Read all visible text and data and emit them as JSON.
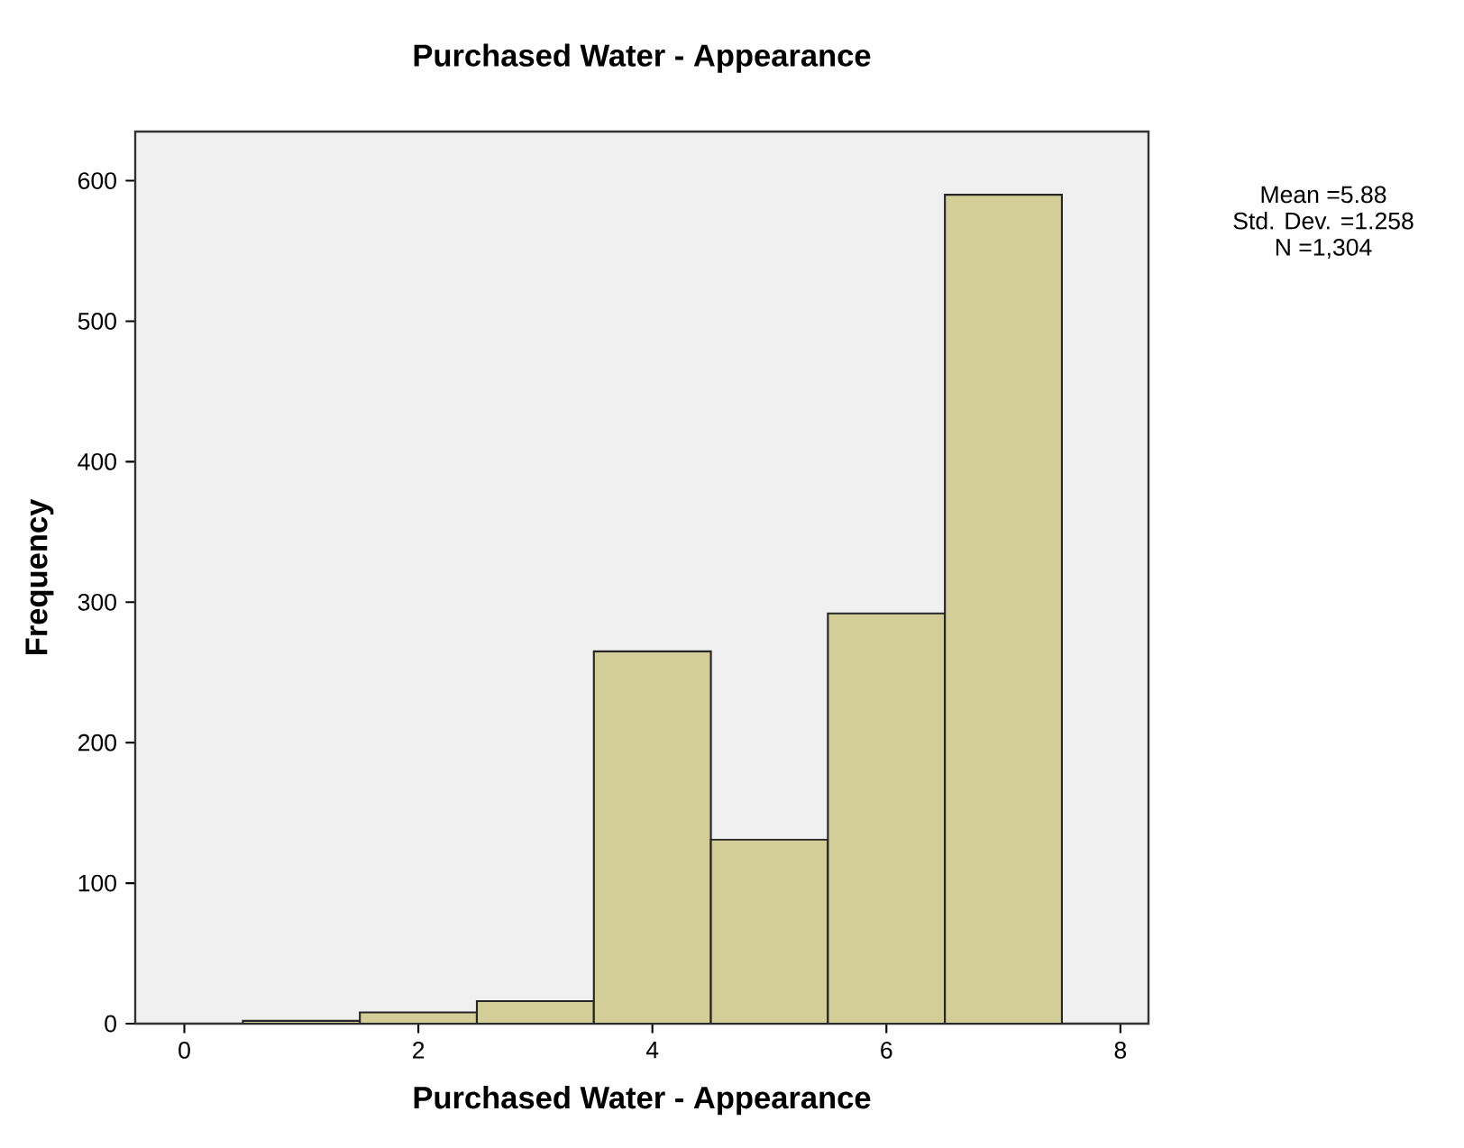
{
  "chart_data": {
    "type": "histogram",
    "title": "Purchased Water - Appearance",
    "xlabel": "Purchased Water - Appearance",
    "ylabel": "Frequency",
    "bins": [
      0.5,
      1.5,
      2.5,
      3.5,
      4.5,
      5.5,
      6.5,
      7.5
    ],
    "values": [
      2,
      8,
      16,
      265,
      131,
      292,
      590
    ],
    "color": "#d3ce97",
    "xlim": [
      -0.42,
      8.24
    ],
    "xticks": [
      0,
      2,
      4,
      6,
      8
    ],
    "ylim": [
      0,
      635
    ],
    "yticks": [
      0,
      100,
      200,
      300,
      400,
      500,
      600
    ],
    "annotations": [
      "Mean =5.88",
      "Std. Dev. =1.258",
      "N =1,304"
    ]
  }
}
